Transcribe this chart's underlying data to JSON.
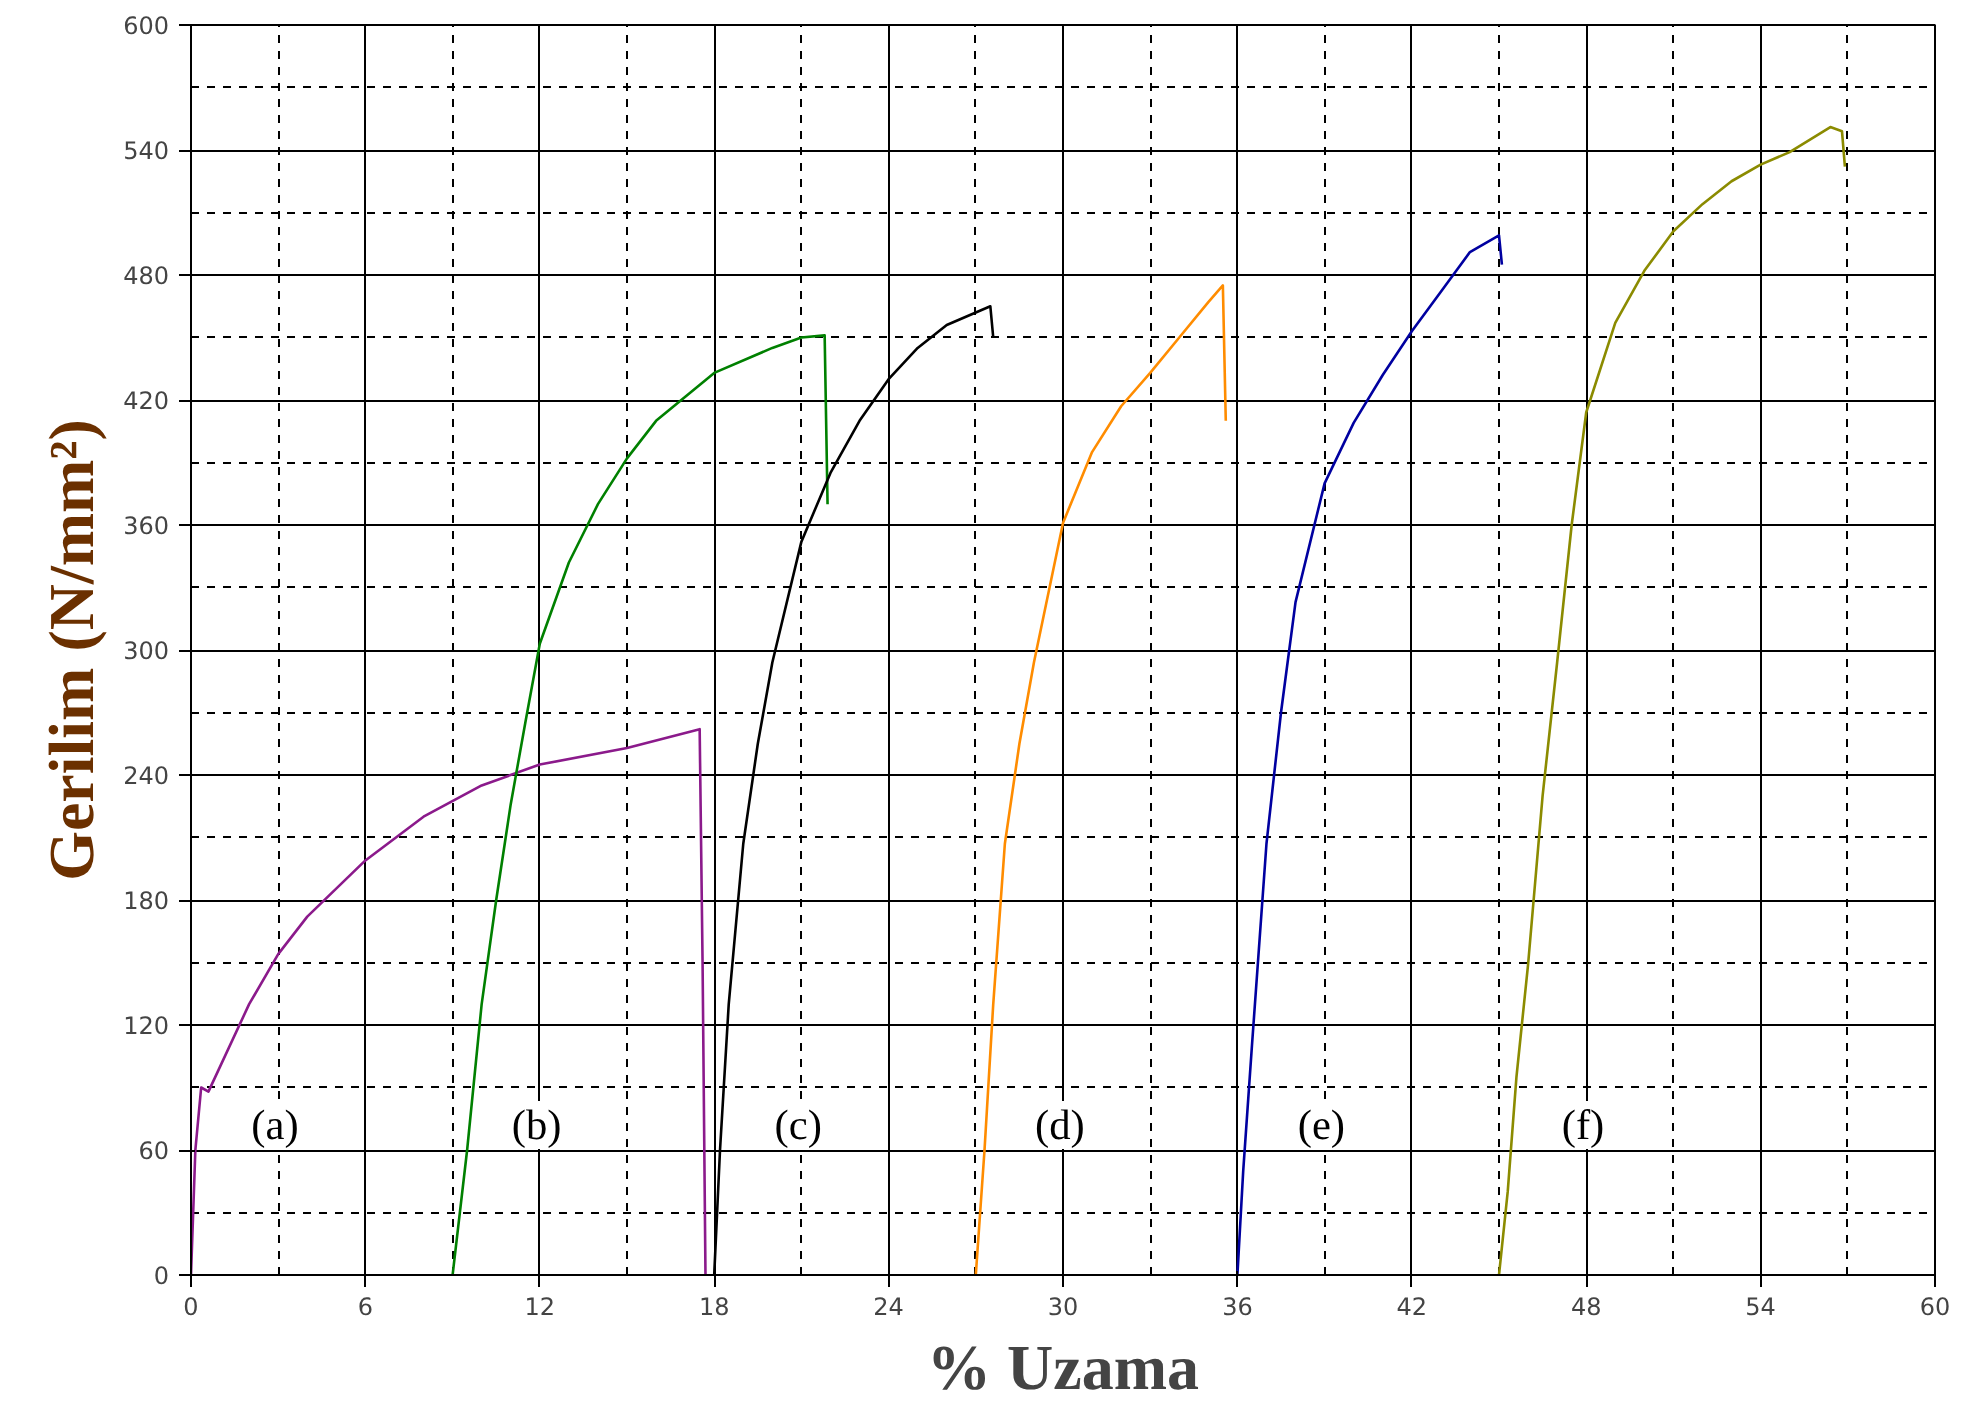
{
  "chart_data": {
    "type": "line",
    "xlabel": "% Uzama",
    "ylabel": "Gerilim (N/mm²)",
    "xlim": [
      0,
      60
    ],
    "ylim": [
      0,
      600
    ],
    "xticks": [
      0,
      6,
      12,
      18,
      24,
      30,
      36,
      42,
      48,
      54,
      60
    ],
    "yticks": [
      0,
      60,
      120,
      180,
      240,
      300,
      360,
      420,
      480,
      540,
      600
    ],
    "grid": true,
    "line_style": "solid",
    "series": [
      {
        "name": "(a)",
        "color": "#8b1a8b",
        "x": [
          0,
          0.15,
          0.35,
          0.6,
          1,
          2,
          3,
          4,
          6,
          8,
          10,
          12,
          15,
          17.5,
          17.6,
          17.7
        ],
        "values": [
          0,
          60,
          90,
          88,
          100,
          130,
          154,
          172,
          199,
          220,
          235,
          245,
          253,
          262,
          150,
          0
        ]
      },
      {
        "name": "(b)",
        "color": "#008000",
        "x": [
          9,
          9.5,
          10,
          10.5,
          11,
          11.5,
          12,
          13,
          14,
          15,
          16,
          18,
          20,
          21,
          21.8,
          21.9
        ],
        "values": [
          0,
          60,
          130,
          180,
          226,
          265,
          303,
          342,
          370,
          392,
          410,
          433,
          445,
          450,
          451,
          370
        ]
      },
      {
        "name": "(c)",
        "color": "#000000",
        "x": [
          18,
          18.2,
          18.5,
          19,
          19.5,
          20,
          21,
          22,
          23,
          24,
          25,
          26,
          27,
          27.5,
          27.6
        ],
        "values": [
          0,
          60,
          130,
          207,
          255,
          294,
          352,
          385,
          410,
          430,
          445,
          456,
          462,
          465,
          450
        ]
      },
      {
        "name": "(d)",
        "color": "#ff8c00",
        "x": [
          27,
          27.3,
          27.6,
          28,
          28.5,
          29,
          30,
          31,
          32,
          33,
          34,
          35,
          35.5,
          35.6
        ],
        "values": [
          0,
          60,
          130,
          207,
          255,
          294,
          361,
          395,
          417,
          433,
          450,
          467,
          475,
          410
        ]
      },
      {
        "name": "(e)",
        "color": "#0000a0",
        "x": [
          36,
          36.2,
          36.5,
          37,
          37.5,
          38,
          39,
          40,
          41,
          42,
          43,
          44,
          45,
          45.1
        ],
        "values": [
          0,
          50,
          110,
          207,
          270,
          323,
          380,
          409,
          432,
          453,
          472,
          491,
          499,
          485
        ]
      },
      {
        "name": "(f)",
        "color": "#8b8b00",
        "x": [
          45,
          45.3,
          45.6,
          46,
          46.5,
          47,
          47.5,
          48,
          49,
          50,
          51,
          52,
          53,
          54,
          55,
          56.4,
          56.8,
          56.9
        ],
        "values": [
          0,
          40,
          95,
          149,
          230,
          294,
          360,
          414,
          457,
          482,
          501,
          514,
          525,
          533,
          539,
          551,
          549,
          532
        ]
      }
    ]
  }
}
